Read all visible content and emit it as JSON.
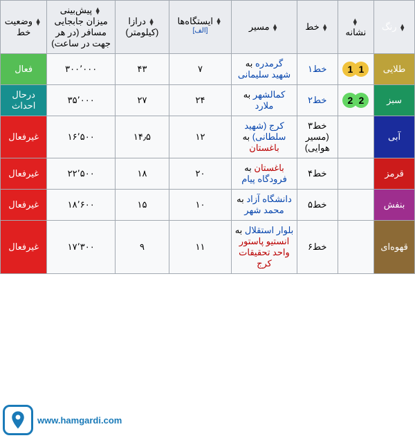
{
  "columns": [
    {
      "key": "color",
      "label": "رنگ"
    },
    {
      "key": "badge",
      "label": "نشانه"
    },
    {
      "key": "line",
      "label": "خط"
    },
    {
      "key": "route",
      "label": "مسیر"
    },
    {
      "key": "stations",
      "label": "ایستگاه‌ها",
      "note": "الف"
    },
    {
      "key": "length",
      "label": "درازا (کیلومتر)"
    },
    {
      "key": "capacity",
      "label": "پیش‌بینی میزان جابجایی مسافر (در هر جهت در ساعت)"
    },
    {
      "key": "status",
      "label": "وضعیت خط"
    }
  ],
  "status_classes": {
    "فعال": "status-active",
    "درحال احداث": "status-building",
    "غیرفعال": "status-inactive"
  },
  "row_colors": {
    "طلایی": {
      "bg": "#bda23a",
      "fg": "#ffffff"
    },
    "سبز": {
      "bg": "#1c945d",
      "fg": "#ffffff"
    },
    "آبی": {
      "bg": "#1a2c9c",
      "fg": "#ffffff"
    },
    "قرمز": {
      "bg": "#cc1b1b",
      "fg": "#ffffff"
    },
    "بنفش": {
      "bg": "#9e2e8e",
      "fg": "#ffffff"
    },
    "قهوه‌ای": {
      "bg": "#8c6a36",
      "fg": "#ffffff"
    }
  },
  "rows": [
    {
      "color": "طلایی",
      "badge": {
        "digits": [
          "1",
          "1"
        ],
        "colors": [
          "#f0c23c",
          "#f0c23c"
        ]
      },
      "line": {
        "text": "خط۱",
        "href": "#",
        "cls": "link"
      },
      "route": [
        {
          "text": "گرمدره",
          "cls": "link"
        },
        {
          "text": " به "
        },
        {
          "text": "شهید سلیمانی",
          "cls": "link"
        }
      ],
      "stations": "۷",
      "length": "۴۳",
      "capacity": "۳۰۰٬۰۰۰",
      "status": "فعال"
    },
    {
      "color": "سبز",
      "badge": {
        "digits": [
          "2",
          "2"
        ],
        "colors": [
          "#63d663",
          "#63d663"
        ]
      },
      "line": {
        "text": "خط۲",
        "href": "#",
        "cls": "link"
      },
      "route": [
        {
          "text": "کمالشهر",
          "cls": "link"
        },
        {
          "text": " به "
        },
        {
          "text": "ملارد",
          "cls": "link"
        }
      ],
      "stations": "۲۴",
      "length": "۲۷",
      "capacity": "۳۵٬۰۰۰",
      "status": "درحال احداث"
    },
    {
      "color": "آبی",
      "badge": null,
      "line": {
        "text": "خط۳ (مسیر هوایی)",
        "cls": ""
      },
      "route": [
        {
          "text": "کرج (شهید سلطانی)",
          "cls": "link"
        },
        {
          "text": " به "
        },
        {
          "text": "باغستان",
          "cls": "redlink"
        }
      ],
      "stations": "۱۲",
      "length": "۱۴٫۵",
      "capacity": "۱۶٬۵۰۰",
      "status": "غیرفعال"
    },
    {
      "color": "قرمز",
      "badge": null,
      "line": {
        "text": "خط۴",
        "cls": ""
      },
      "route": [
        {
          "text": "باغستان",
          "cls": "redlink"
        },
        {
          "text": " به "
        },
        {
          "text": "فرودگاه پیام",
          "cls": "link"
        }
      ],
      "stations": "۲۰",
      "length": "۱۸",
      "capacity": "۲۲٬۵۰۰",
      "status": "غیرفعال"
    },
    {
      "color": "بنفش",
      "badge": null,
      "line": {
        "text": "خط۵",
        "cls": ""
      },
      "route": [
        {
          "text": "دانشگاه آزاد",
          "cls": "link"
        },
        {
          "text": " به "
        },
        {
          "text": "محمد شهر",
          "cls": "link"
        }
      ],
      "stations": "۱۰",
      "length": "۱۵",
      "capacity": "۱۸٬۶۰۰",
      "status": "غیرفعال"
    },
    {
      "color": "قهوه‌ای",
      "badge": null,
      "line": {
        "text": "خط۶",
        "cls": ""
      },
      "route": [
        {
          "text": "بلوار استقلال",
          "cls": "link"
        },
        {
          "text": " به "
        },
        {
          "text": "انستیو پاستور واحد تحقیقات کرج",
          "cls": "redlink"
        }
      ],
      "stations": "۱۱",
      "length": "۹",
      "capacity": "۱۷٬۳۰۰",
      "status": "غیرفعال"
    }
  ],
  "watermark": {
    "text": "www.hamgardi.com",
    "brand_color": "#1a7ab8"
  }
}
